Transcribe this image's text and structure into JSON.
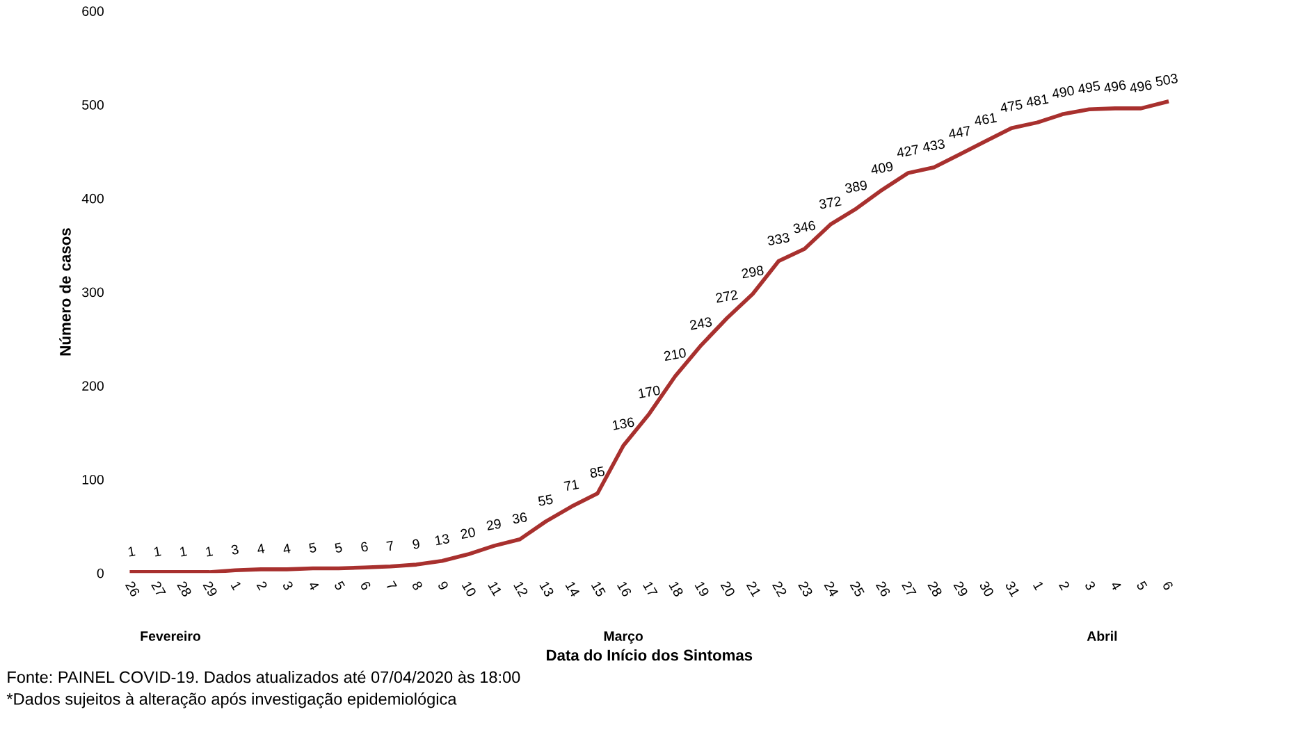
{
  "chart_data": {
    "type": "line",
    "xlabel": "Data do Início dos Sintomas",
    "ylabel": "Número de casos",
    "categories": [
      "26",
      "27",
      "28",
      "29",
      "1",
      "2",
      "3",
      "4",
      "5",
      "6",
      "7",
      "8",
      "9",
      "10",
      "11",
      "12",
      "13",
      "14",
      "15",
      "16",
      "17",
      "18",
      "19",
      "20",
      "21",
      "22",
      "23",
      "24",
      "25",
      "26",
      "27",
      "28",
      "29",
      "30",
      "31",
      "1",
      "2",
      "3",
      "4",
      "5",
      "6"
    ],
    "series": [
      {
        "color": "#a8302e",
        "values": [
          1,
          1,
          1,
          1,
          3,
          4,
          4,
          5,
          5,
          6,
          7,
          9,
          13,
          20,
          29,
          36,
          55,
          71,
          85,
          136,
          170,
          210,
          243,
          272,
          298,
          333,
          346,
          372,
          389,
          409,
          427,
          433,
          447,
          461,
          475,
          481,
          490,
          495,
          496,
          496,
          503
        ]
      }
    ],
    "ylim": [
      0,
      600
    ],
    "yticks": [
      0,
      100,
      200,
      300,
      400,
      500,
      600
    ],
    "grid": false,
    "legend": false,
    "marker": "none",
    "line_style": "solid",
    "data_labels": true,
    "annotations": [
      "Fevereiro",
      "Março",
      "Abril",
      "Fonte: PAINEL COVID-19. Dados atualizados até 07/04/2020 às 18:00",
      "*Dados sujeitos à alteração após investigação epidemiológica"
    ]
  }
}
